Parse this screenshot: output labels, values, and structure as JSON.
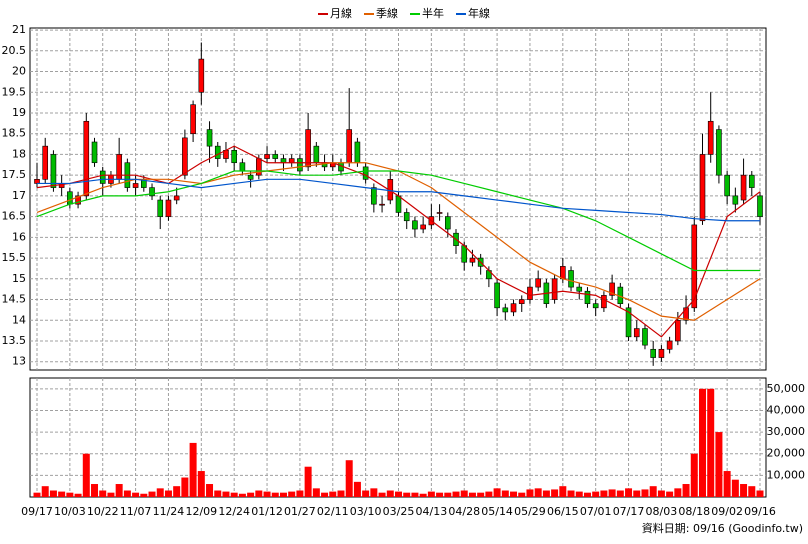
{
  "chart_data": {
    "type": "candlestick",
    "legend": [
      "月線",
      "季線",
      "半年",
      "年線"
    ],
    "footer": "資料日期: 09/16 (Goodinfo.tw)",
    "up_color": "#ff0000",
    "down_color": "#00bb00",
    "grid": true,
    "xlim": [
      0,
      88
    ],
    "xticks": [
      {
        "value": 0,
        "label": "09/17"
      },
      {
        "value": 4,
        "label": "10/03"
      },
      {
        "value": 8,
        "label": "10/22"
      },
      {
        "value": 12,
        "label": "11/07"
      },
      {
        "value": 16,
        "label": "11/24"
      },
      {
        "value": 20,
        "label": "12/09"
      },
      {
        "value": 24,
        "label": "12/24"
      },
      {
        "value": 28,
        "label": "01/12"
      },
      {
        "value": 32,
        "label": "01/27"
      },
      {
        "value": 36,
        "label": "02/11"
      },
      {
        "value": 40,
        "label": "03/10"
      },
      {
        "value": 44,
        "label": "03/25"
      },
      {
        "value": 48,
        "label": "04/13"
      },
      {
        "value": 52,
        "label": "04/28"
      },
      {
        "value": 56,
        "label": "05/14"
      },
      {
        "value": 60,
        "label": "05/29"
      },
      {
        "value": 64,
        "label": "06/15"
      },
      {
        "value": 68,
        "label": "07/01"
      },
      {
        "value": 72,
        "label": "07/17"
      },
      {
        "value": 76,
        "label": "08/03"
      },
      {
        "value": 80,
        "label": "08/18"
      },
      {
        "value": 84,
        "label": "09/02"
      },
      {
        "value": 88,
        "label": "09/16"
      }
    ],
    "ylim": [
      12.8,
      21.05
    ],
    "yticks": [
      13,
      13.5,
      14,
      14.5,
      15,
      15.5,
      16,
      16.5,
      17,
      17.5,
      18,
      18.5,
      19,
      19.5,
      20,
      20.5,
      21
    ],
    "ohlc": [
      [
        17.3,
        17.8,
        17.2,
        17.4
      ],
      [
        17.4,
        18.4,
        17.3,
        18.2
      ],
      [
        18.0,
        18.1,
        17.1,
        17.2
      ],
      [
        17.2,
        17.5,
        17.0,
        17.3
      ],
      [
        17.1,
        17.2,
        16.7,
        16.8
      ],
      [
        16.8,
        17.1,
        16.7,
        17.0
      ],
      [
        17.0,
        19.0,
        16.9,
        18.8
      ],
      [
        18.3,
        18.4,
        17.7,
        17.8
      ],
      [
        17.6,
        17.7,
        17.0,
        17.3
      ],
      [
        17.3,
        17.6,
        17.2,
        17.5
      ],
      [
        17.4,
        18.4,
        17.3,
        18.0
      ],
      [
        17.8,
        17.9,
        17.1,
        17.2
      ],
      [
        17.2,
        17.5,
        17.0,
        17.3
      ],
      [
        17.4,
        17.5,
        17.1,
        17.2
      ],
      [
        17.2,
        17.3,
        16.9,
        17.0
      ],
      [
        16.9,
        17.0,
        16.2,
        16.5
      ],
      [
        16.5,
        17.0,
        16.4,
        16.9
      ],
      [
        16.9,
        17.2,
        16.8,
        17.0
      ],
      [
        17.5,
        18.6,
        17.4,
        18.4
      ],
      [
        18.5,
        19.3,
        18.3,
        19.2
      ],
      [
        19.5,
        20.7,
        19.2,
        20.3
      ],
      [
        18.6,
        18.8,
        17.8,
        18.2
      ],
      [
        18.2,
        18.3,
        17.7,
        17.9
      ],
      [
        17.9,
        18.3,
        17.8,
        18.1
      ],
      [
        18.1,
        18.2,
        17.6,
        17.8
      ],
      [
        17.8,
        17.9,
        17.5,
        17.6
      ],
      [
        17.5,
        17.6,
        17.2,
        17.4
      ],
      [
        17.5,
        18.0,
        17.4,
        17.9
      ],
      [
        17.9,
        18.2,
        17.8,
        18.0
      ],
      [
        18.0,
        18.1,
        17.8,
        17.9
      ],
      [
        17.9,
        18.0,
        17.6,
        17.8
      ],
      [
        17.8,
        18.0,
        17.7,
        17.9
      ],
      [
        17.9,
        18.0,
        17.5,
        17.6
      ],
      [
        17.7,
        19.0,
        17.6,
        18.6
      ],
      [
        18.2,
        18.3,
        17.7,
        17.8
      ],
      [
        17.8,
        18.0,
        17.6,
        17.7
      ],
      [
        17.7,
        18.0,
        17.6,
        17.8
      ],
      [
        17.8,
        17.9,
        17.5,
        17.6
      ],
      [
        17.8,
        19.6,
        17.7,
        18.6
      ],
      [
        18.3,
        18.4,
        17.7,
        17.8
      ],
      [
        17.7,
        17.8,
        17.3,
        17.4
      ],
      [
        17.2,
        17.3,
        16.6,
        16.8
      ],
      [
        16.8,
        17.0,
        16.6,
        16.8
      ],
      [
        16.9,
        17.6,
        16.8,
        17.4
      ],
      [
        17.0,
        17.1,
        16.5,
        16.6
      ],
      [
        16.6,
        16.7,
        16.2,
        16.4
      ],
      [
        16.4,
        16.5,
        16.0,
        16.2
      ],
      [
        16.2,
        16.5,
        16.1,
        16.3
      ],
      [
        16.3,
        16.8,
        16.2,
        16.5
      ],
      [
        16.6,
        16.8,
        16.4,
        16.6
      ],
      [
        16.5,
        16.6,
        16.0,
        16.2
      ],
      [
        16.1,
        16.2,
        15.6,
        15.8
      ],
      [
        15.8,
        15.9,
        15.2,
        15.4
      ],
      [
        15.4,
        15.7,
        15.3,
        15.5
      ],
      [
        15.5,
        15.6,
        15.1,
        15.3
      ],
      [
        15.2,
        15.3,
        14.8,
        15.0
      ],
      [
        14.9,
        15.0,
        14.1,
        14.3
      ],
      [
        14.3,
        14.4,
        14.0,
        14.2
      ],
      [
        14.2,
        14.5,
        14.1,
        14.4
      ],
      [
        14.4,
        14.6,
        14.2,
        14.5
      ],
      [
        14.5,
        15.0,
        14.4,
        14.8
      ],
      [
        14.8,
        15.2,
        14.7,
        15.0
      ],
      [
        14.9,
        15.0,
        14.3,
        14.4
      ],
      [
        14.5,
        15.1,
        14.4,
        15.0
      ],
      [
        15.0,
        15.5,
        14.9,
        15.3
      ],
      [
        15.2,
        15.3,
        14.7,
        14.8
      ],
      [
        14.8,
        14.9,
        14.5,
        14.7
      ],
      [
        14.7,
        14.8,
        14.3,
        14.4
      ],
      [
        14.4,
        14.5,
        14.1,
        14.3
      ],
      [
        14.3,
        14.7,
        14.2,
        14.6
      ],
      [
        14.6,
        15.1,
        14.5,
        14.9
      ],
      [
        14.8,
        14.9,
        14.3,
        14.4
      ],
      [
        14.3,
        14.4,
        13.5,
        13.6
      ],
      [
        13.6,
        14.0,
        13.5,
        13.8
      ],
      [
        13.8,
        13.9,
        13.3,
        13.4
      ],
      [
        13.3,
        13.5,
        12.9,
        13.1
      ],
      [
        13.1,
        13.4,
        13.0,
        13.3
      ],
      [
        13.3,
        13.6,
        13.2,
        13.5
      ],
      [
        13.5,
        14.2,
        13.4,
        14.0
      ],
      [
        14.0,
        14.6,
        13.9,
        14.3
      ],
      [
        14.3,
        16.5,
        14.2,
        16.3
      ],
      [
        16.4,
        18.5,
        16.3,
        18.0
      ],
      [
        18.0,
        19.5,
        17.8,
        18.8
      ],
      [
        18.6,
        18.7,
        17.3,
        17.5
      ],
      [
        17.5,
        17.6,
        16.8,
        17.0
      ],
      [
        17.0,
        17.2,
        16.6,
        16.8
      ],
      [
        16.9,
        17.9,
        16.8,
        17.5
      ],
      [
        17.5,
        17.6,
        17.0,
        17.2
      ],
      [
        17.0,
        17.1,
        16.3,
        16.5
      ]
    ],
    "series": [
      {
        "name": "月線",
        "color": "#cc0000",
        "x": [
          0,
          4,
          8,
          12,
          16,
          20,
          24,
          28,
          32,
          36,
          40,
          44,
          48,
          52,
          56,
          60,
          64,
          68,
          72,
          76,
          80,
          84,
          88
        ],
        "values": [
          17.2,
          17.3,
          17.5,
          17.5,
          17.3,
          17.8,
          18.2,
          17.8,
          17.8,
          17.8,
          17.5,
          17.0,
          16.4,
          15.8,
          15.0,
          14.6,
          14.7,
          14.6,
          14.2,
          13.6,
          14.5,
          16.5,
          17.1
        ]
      },
      {
        "name": "季線",
        "color": "#e06000",
        "x": [
          0,
          4,
          8,
          12,
          16,
          20,
          24,
          28,
          32,
          36,
          40,
          44,
          48,
          52,
          56,
          60,
          64,
          68,
          72,
          76,
          80,
          84,
          88
        ],
        "values": [
          16.6,
          16.9,
          17.2,
          17.4,
          17.4,
          17.3,
          17.5,
          17.6,
          17.7,
          17.8,
          17.8,
          17.6,
          17.2,
          16.6,
          16.0,
          15.4,
          15.0,
          14.8,
          14.5,
          14.1,
          14.0,
          14.5,
          15.0
        ]
      },
      {
        "name": "半年",
        "color": "#00cc00",
        "x": [
          0,
          4,
          8,
          12,
          16,
          20,
          24,
          28,
          32,
          36,
          40,
          44,
          48,
          52,
          56,
          60,
          64,
          68,
          72,
          76,
          80,
          84,
          88
        ],
        "values": [
          16.5,
          16.8,
          17.0,
          17.0,
          17.1,
          17.3,
          17.6,
          17.6,
          17.5,
          17.5,
          17.6,
          17.6,
          17.5,
          17.3,
          17.1,
          16.9,
          16.7,
          16.4,
          16.0,
          15.6,
          15.2,
          15.2,
          15.2
        ]
      },
      {
        "name": "年線",
        "color": "#0055cc",
        "x": [
          0,
          4,
          8,
          12,
          16,
          20,
          24,
          28,
          32,
          36,
          40,
          44,
          48,
          52,
          56,
          60,
          64,
          68,
          72,
          76,
          80,
          84,
          88
        ],
        "values": [
          17.3,
          17.3,
          17.4,
          17.4,
          17.3,
          17.2,
          17.3,
          17.4,
          17.4,
          17.3,
          17.2,
          17.1,
          17.1,
          17.0,
          16.9,
          16.8,
          16.7,
          16.65,
          16.6,
          16.55,
          16.45,
          16.4,
          16.4
        ]
      }
    ],
    "volume": {
      "color": "#ff0000",
      "ylim": [
        0,
        55000
      ],
      "yticks": [
        {
          "value": 10000,
          "label": "10,000"
        },
        {
          "value": 20000,
          "label": "20,000"
        },
        {
          "value": 30000,
          "label": "30,000"
        },
        {
          "value": 40000,
          "label": "40,000"
        },
        {
          "value": 50000,
          "label": "50,000"
        }
      ],
      "values": [
        2000,
        5000,
        3000,
        2500,
        2000,
        1500,
        20000,
        6000,
        3000,
        2000,
        6000,
        3000,
        2000,
        1500,
        2500,
        4000,
        3000,
        5000,
        9000,
        25000,
        12000,
        6000,
        3000,
        2500,
        2000,
        1500,
        2000,
        3000,
        2500,
        2000,
        2000,
        2500,
        3000,
        14000,
        4000,
        2000,
        2500,
        3000,
        17000,
        7000,
        3000,
        4000,
        2000,
        3000,
        2500,
        2000,
        2000,
        1500,
        2500,
        2000,
        2000,
        2500,
        3000,
        2000,
        2000,
        2500,
        4000,
        3000,
        2500,
        2000,
        3500,
        4000,
        3000,
        3500,
        5000,
        3000,
        2500,
        2000,
        2500,
        3000,
        3500,
        3000,
        4000,
        3000,
        3500,
        5000,
        3000,
        2500,
        4000,
        6000,
        20000,
        50000,
        50000,
        30000,
        12000,
        8000,
        6000,
        5000,
        3000
      ]
    }
  }
}
